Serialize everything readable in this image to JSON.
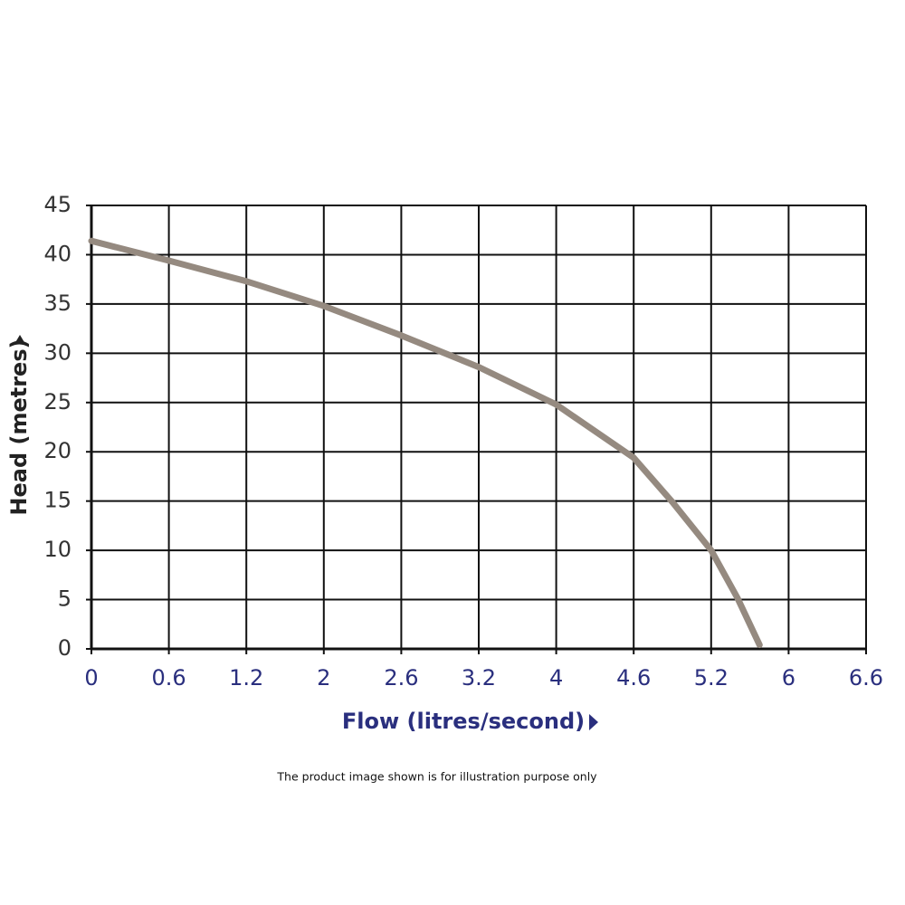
{
  "chart_data": {
    "type": "line",
    "x_label": "Flow (litres/second)",
    "y_label": "Head (metres)",
    "note": "The product image shown is for illustration purpose only",
    "xlim": [
      0,
      6.6
    ],
    "xticks": [
      0,
      0.6,
      1.2,
      2,
      2.6,
      3.2,
      4,
      4.6,
      5.2,
      6,
      6.6
    ],
    "ylim": [
      0,
      45
    ],
    "yticks": [
      0,
      5,
      10,
      15,
      20,
      25,
      30,
      35,
      40,
      45
    ],
    "grid": true,
    "series": [
      {
        "color": "#958a80",
        "x": [
          0,
          0.6,
          1.2,
          2,
          2.6,
          3.2,
          4,
          4.6,
          4.9,
          5.2,
          5.47,
          5.7
        ],
        "values": [
          41.4,
          39.4,
          37.3,
          34.8,
          31.8,
          28.6,
          24.8,
          19.4,
          14.9,
          10,
          5.2,
          0.4
        ]
      }
    ]
  }
}
